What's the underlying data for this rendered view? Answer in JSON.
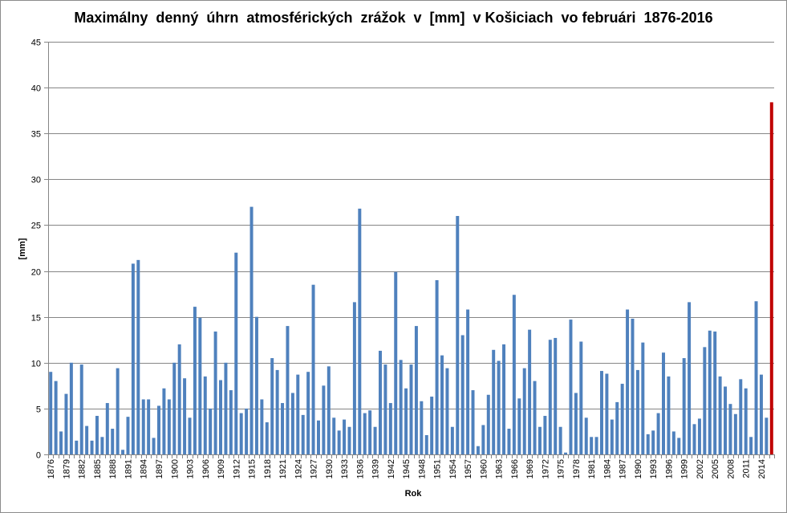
{
  "chart_data": {
    "type": "bar",
    "title": "Maximálny  denný  úhrn  atmosférických  zrážok  v  [mm]  v Košiciach  vo februári  1876-2016",
    "xlabel": "Rok",
    "ylabel": "[mm]",
    "ylim": [
      0,
      45
    ],
    "yticks": [
      0,
      5,
      10,
      15,
      20,
      25,
      30,
      35,
      40,
      45
    ],
    "grid": true,
    "legend": "none",
    "bar_color": "#4f81bd",
    "highlight_color": "#c00000",
    "highlight_category": "2016",
    "x_tick_labels": [
      "1876",
      "1879",
      "1882",
      "1885",
      "1888",
      "1891",
      "1894",
      "1897",
      "1900",
      "1903",
      "1906",
      "1909",
      "1912",
      "1915",
      "1918",
      "1921",
      "1924",
      "1927",
      "1930",
      "1933",
      "1936",
      "1939",
      "1942",
      "1945",
      "1948",
      "1951",
      "1954",
      "1957",
      "1960",
      "1963",
      "1966",
      "1969",
      "1972",
      "1975",
      "1978",
      "1981",
      "1984",
      "1987",
      "1990",
      "1993",
      "1996",
      "1999",
      "2002",
      "2005",
      "2008",
      "2011",
      "2014"
    ],
    "categories": [
      "1876",
      "1877",
      "1878",
      "1879",
      "1880",
      "1881",
      "1882",
      "1883",
      "1884",
      "1885",
      "1886",
      "1887",
      "1888",
      "1889",
      "1890",
      "1891",
      "1892",
      "1893",
      "1894",
      "1895",
      "1896",
      "1897",
      "1898",
      "1899",
      "1900",
      "1901",
      "1902",
      "1903",
      "1904",
      "1905",
      "1906",
      "1907",
      "1908",
      "1909",
      "1910",
      "1911",
      "1912",
      "1913",
      "1914",
      "1915",
      "1916",
      "1917",
      "1918",
      "1919",
      "1920",
      "1921",
      "1922",
      "1923",
      "1924",
      "1925",
      "1926",
      "1927",
      "1928",
      "1929",
      "1930",
      "1931",
      "1932",
      "1933",
      "1934",
      "1935",
      "1936",
      "1937",
      "1938",
      "1939",
      "1940",
      "1941",
      "1942",
      "1943",
      "1944",
      "1945",
      "1946",
      "1947",
      "1948",
      "1949",
      "1950",
      "1951",
      "1952",
      "1953",
      "1954",
      "1955",
      "1956",
      "1957",
      "1958",
      "1959",
      "1960",
      "1961",
      "1962",
      "1963",
      "1964",
      "1965",
      "1966",
      "1967",
      "1968",
      "1969",
      "1970",
      "1971",
      "1972",
      "1973",
      "1974",
      "1975",
      "1976",
      "1977",
      "1978",
      "1979",
      "1980",
      "1981",
      "1982",
      "1983",
      "1984",
      "1985",
      "1986",
      "1987",
      "1988",
      "1989",
      "1990",
      "1991",
      "1992",
      "1993",
      "1994",
      "1995",
      "1996",
      "1997",
      "1998",
      "1999",
      "2000",
      "2001",
      "2002",
      "2003",
      "2004",
      "2005",
      "2006",
      "2007",
      "2008",
      "2009",
      "2010",
      "2011",
      "2012",
      "2013",
      "2014",
      "2015",
      "2016"
    ],
    "values": [
      9.0,
      8.0,
      2.5,
      6.6,
      10.0,
      1.5,
      9.8,
      3.1,
      1.5,
      4.2,
      1.9,
      5.6,
      2.8,
      9.4,
      0.5,
      4.1,
      20.8,
      21.2,
      6.0,
      6.0,
      1.8,
      5.3,
      7.2,
      6.0,
      10.0,
      12.0,
      8.3,
      4.0,
      16.1,
      14.9,
      8.5,
      5.0,
      13.4,
      8.1,
      10.0,
      7.0,
      22.0,
      4.5,
      5.0,
      27.0,
      15.0,
      6.0,
      3.5,
      10.5,
      9.2,
      5.6,
      14.0,
      6.7,
      8.7,
      4.3,
      9.0,
      18.5,
      3.7,
      7.5,
      9.6,
      4.0,
      2.6,
      3.8,
      3.0,
      16.6,
      26.8,
      4.5,
      4.8,
      3.0,
      11.3,
      9.8,
      5.6,
      19.9,
      10.3,
      7.2,
      9.8,
      14.0,
      5.8,
      2.1,
      6.3,
      19.0,
      10.8,
      9.4,
      3.0,
      26.0,
      13.0,
      15.8,
      7.0,
      0.9,
      3.2,
      6.5,
      11.4,
      10.2,
      12.0,
      2.8,
      17.4,
      6.1,
      9.4,
      13.6,
      8.0,
      3.0,
      4.2,
      12.5,
      12.7,
      3.0,
      0.2,
      14.7,
      6.7,
      12.3,
      4.0,
      1.9,
      1.9,
      9.1,
      8.8,
      3.8,
      5.7,
      7.7,
      15.8,
      14.8,
      9.2,
      12.2,
      2.2,
      2.6,
      4.5,
      11.1,
      8.5,
      2.5,
      1.8,
      10.5,
      16.6,
      3.3,
      3.9,
      11.7,
      13.5,
      13.4,
      8.5,
      7.4,
      5.5,
      4.4,
      8.2,
      7.2,
      1.9,
      16.7,
      8.7,
      4.0,
      38.4
    ]
  }
}
